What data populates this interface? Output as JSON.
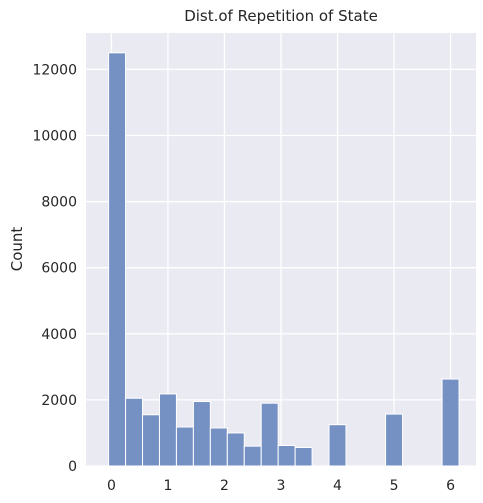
{
  "chart_data": {
    "type": "bar",
    "title": "Dist.of Repetition of State",
    "xlabel": "",
    "ylabel": "Count",
    "xlim": [
      -0.45,
      6.45
    ],
    "ylim": [
      0,
      13100
    ],
    "x_ticks": [
      0,
      1,
      2,
      3,
      4,
      5,
      6
    ],
    "y_ticks": [
      0,
      2000,
      4000,
      6000,
      8000,
      10000,
      12000
    ],
    "grid": true,
    "bin_width": 0.3,
    "bins": [
      {
        "x0": -0.05,
        "value": 12500
      },
      {
        "x0": 0.25,
        "value": 2050
      },
      {
        "x0": 0.55,
        "value": 1550
      },
      {
        "x0": 0.85,
        "value": 2180
      },
      {
        "x0": 1.15,
        "value": 1180
      },
      {
        "x0": 1.45,
        "value": 1950
      },
      {
        "x0": 1.75,
        "value": 1150
      },
      {
        "x0": 2.05,
        "value": 1000
      },
      {
        "x0": 2.35,
        "value": 600
      },
      {
        "x0": 2.65,
        "value": 1900
      },
      {
        "x0": 2.95,
        "value": 620
      },
      {
        "x0": 3.25,
        "value": 560
      },
      {
        "x0": 3.85,
        "value": 1250
      },
      {
        "x0": 4.85,
        "value": 1570
      },
      {
        "x0": 5.85,
        "value": 2630
      }
    ]
  },
  "colors": {
    "background": "#eaeaf2",
    "grid": "#ffffff",
    "bar_fill": "#7591c4",
    "bar_edge": "#ffffff"
  }
}
